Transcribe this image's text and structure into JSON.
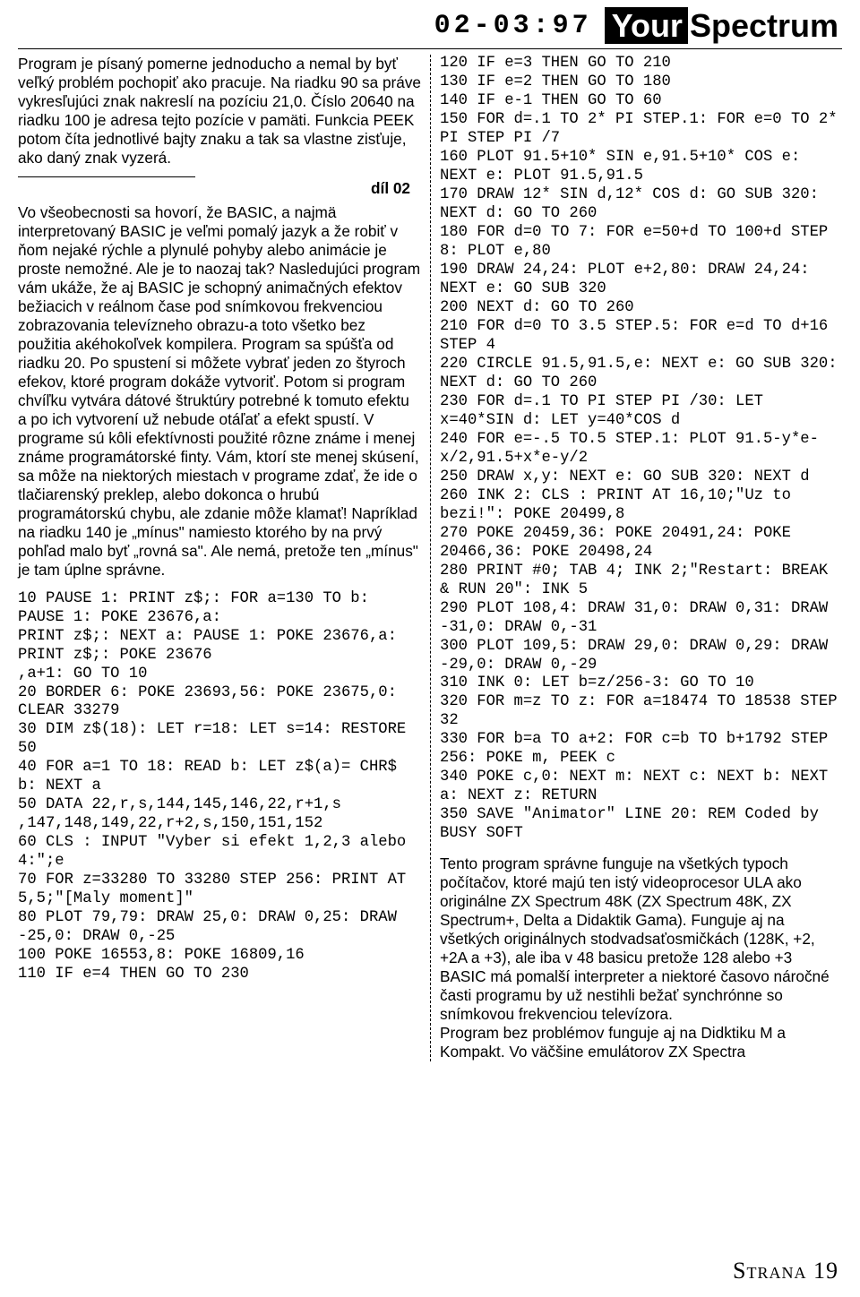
{
  "header": {
    "issue_code": "02-03:97",
    "mag_your": "Your",
    "mag_spectrum": "Spectrum"
  },
  "left": {
    "para1": "Program je písaný pomerne jednoducho a nemal by byť veľký problém pochopiť ako pracuje. Na riadku 90 sa práve vykresľujúci znak nakreslí na pozíciu 21,0. Číslo 20640 na riadku 100 je adresa tejto pozície v pamäti. Funkcia PEEK potom číta jednotlivé bajty znaku a tak sa vlastne zisťuje, ako daný znak vyzerá.",
    "section_label": "díl 02",
    "para2": "Vo všeobecnosti sa hovorí, že BASIC, a najmä interpretovaný BASIC je veľmi pomalý jazyk a že robiť v ňom nejaké rýchle a plynulé pohyby alebo animácie je proste nemožné. Ale je to naozaj tak? Nasledujúci program vám ukáže, že aj BASIC je schopný animačných efektov bežiacich v reálnom čase pod snímkovou frekvenciou zobrazovania televízneho obrazu-a toto všetko bez použitia akéhokoľvek kompilera. Program sa spúšťa od riadku 20. Po spustení si môžete vybrať jeden zo štyroch efekov, ktoré program dokáže vytvoriť. Potom si program chvíľku vytvára dátové štruktúry potrebné k tomuto efektu a po ich vytvorení už nebude otáľať a efekt spustí. V programe sú kôli efektívnosti použité rôzne známe i menej známe programátorské finty. Vám, ktorí ste menej skúsení, sa môže na niektorých miestach v programe zdať, že ide o tlačiarenský preklep, alebo dokonca o hrubú programátorskú chybu, ale zdanie môže klamať! Napríklad na riadku 140 je „mínus\" namiesto ktorého by na prvý pohľad malo byť „rovná sa\". Ale nemá, pretože ten „mínus\" je tam úplne správne.",
    "code": "10 PAUSE 1: PRINT z$;: FOR a=130 TO b: PAUSE 1: POKE 23676,a:\nPRINT z$;: NEXT a: PAUSE 1: POKE 23676,a: PRINT z$;: POKE 23676\n,a+1: GO TO 10\n20 BORDER 6: POKE 23693,56: POKE 23675,0: CLEAR 33279\n30 DIM z$(18): LET r=18: LET s=14: RESTORE 50\n40 FOR a=1 TO 18: READ b: LET z$(a)= CHR$ b: NEXT a\n50 DATA 22,r,s,144,145,146,22,r+1,s\n,147,148,149,22,r+2,s,150,151,152\n60 CLS : INPUT \"Vyber si efekt 1,2,3 alebo 4:\";e\n70 FOR z=33280 TO 33280 STEP 256: PRINT AT 5,5;\"[Maly moment]\"\n80 PLOT 79,79: DRAW 25,0: DRAW 0,25: DRAW -25,0: DRAW 0,-25\n100 POKE 16553,8: POKE 16809,16\n110 IF e=4 THEN GO TO 230"
  },
  "right": {
    "code": "120 IF e=3 THEN GO TO 210\n130 IF e=2 THEN GO TO 180\n140 IF e-1 THEN GO TO 60\n150 FOR d=.1 TO 2* PI STEP.1: FOR e=0 TO 2* PI STEP PI /7\n160 PLOT 91.5+10* SIN e,91.5+10* COS e: NEXT e: PLOT 91.5,91.5\n170 DRAW 12* SIN d,12* COS d: GO SUB 320: NEXT d: GO TO 260\n180 FOR d=0 TO 7: FOR e=50+d TO 100+d STEP 8: PLOT e,80\n190 DRAW 24,24: PLOT e+2,80: DRAW 24,24: NEXT e: GO SUB 320\n200 NEXT d: GO TO 260\n210 FOR d=0 TO 3.5 STEP.5: FOR e=d TO d+16 STEP 4\n220 CIRCLE 91.5,91.5,e: NEXT e: GO SUB 320: NEXT d: GO TO 260\n230 FOR d=.1 TO PI STEP PI /30: LET x=40*SIN d: LET y=40*COS d\n240 FOR e=-.5 TO.5 STEP.1: PLOT 91.5-y*e-x/2,91.5+x*e-y/2\n250 DRAW x,y: NEXT e: GO SUB 320: NEXT d\n260 INK 2: CLS : PRINT AT 16,10;\"Uz to bezi!\": POKE 20499,8\n270 POKE 20459,36: POKE 20491,24: POKE 20466,36: POKE 20498,24\n280 PRINT #0; TAB 4; INK 2;\"Restart: BREAK & RUN 20\": INK 5\n290 PLOT 108,4: DRAW 31,0: DRAW 0,31: DRAW -31,0: DRAW 0,-31\n300 PLOT 109,5: DRAW 29,0: DRAW 0,29: DRAW -29,0: DRAW 0,-29\n310 INK 0: LET b=z/256-3: GO TO 10\n320 FOR m=z TO z: FOR a=18474 TO 18538 STEP 32\n330 FOR b=a TO a+2: FOR c=b TO b+1792 STEP 256: POKE m, PEEK c\n340 POKE c,0: NEXT m: NEXT c: NEXT b: NEXT a: NEXT z: RETURN\n350 SAVE \"Animator\" LINE 20: REM Coded by BUSY SOFT",
    "para3": "Tento program správne funguje na všetkých typoch počítačov, ktoré majú ten istý videoprocesor ULA ako originálne ZX Spectrum 48K (ZX Spectrum 48K, ZX Spectrum+, Delta a Didaktik Gama). Funguje aj na všetkých originálnych stodvadsaťosmičkách (128K, +2, +2A a +3), ale iba v 48 basicu pretože 128 alebo +3 BASIC má pomalší interpreter a niektoré časovo náročné časti programu by už nestihli bežať synchrónne so snímkovou frekvenciou televízora.",
    "para4": "Program bez problémov funguje aj na Didktiku M a Kompakt.  Vo väčšine emulátorov ZX Spectra"
  },
  "footer": {
    "page_label": "Strana 19"
  }
}
